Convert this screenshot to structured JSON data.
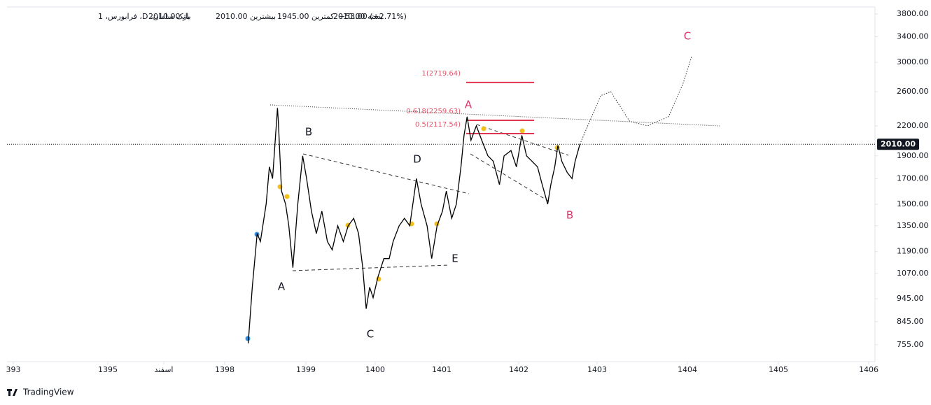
{
  "header": {
    "symbol": "بانک سامان، D، فرابورس، 1",
    "open": "باز 2010.00",
    "high": "بیشترین 2010.00",
    "low": "کمترین 1945.00",
    "close": "بسته 2010.00",
    "change": "+53.00 (+2.71%)"
  },
  "footer": "TradingView",
  "chart_data": {
    "type": "line",
    "log_scale": true,
    "color": "#000000",
    "x": [
      1398.29,
      1398.34,
      1398.4,
      1398.44,
      1398.51,
      1398.55,
      1398.59,
      1398.65,
      1398.66,
      1398.7,
      1398.75,
      1398.79,
      1398.84,
      1398.9,
      1398.96,
      1399.01,
      1399.08,
      1399.15,
      1399.23,
      1399.31,
      1399.38,
      1399.46,
      1399.54,
      1399.61,
      1399.69,
      1399.76,
      1399.82,
      1399.87,
      1399.92,
      1399.97,
      1400.04,
      1400.13,
      1400.21,
      1400.27,
      1400.36,
      1400.44,
      1400.52,
      1400.62,
      1400.69,
      1400.78,
      1400.85,
      1400.93,
      1401.01,
      1401.06,
      1401.13,
      1401.19,
      1401.25,
      1401.29,
      1401.33,
      1401.38,
      1401.45,
      1401.52,
      1401.6,
      1401.67,
      1401.75,
      1401.81,
      1401.9,
      1401.97,
      1402.04,
      1402.1,
      1402.17,
      1402.24,
      1402.3,
      1402.37,
      1402.41,
      1402.46,
      1402.5,
      1402.55,
      1402.62,
      1402.68,
      1402.72,
      1402.78
    ],
    "values": [
      760,
      1000,
      1300,
      1250,
      1500,
      1800,
      1700,
      2400,
      2250,
      1600,
      1500,
      1350,
      1100,
      1500,
      1900,
      1700,
      1450,
      1300,
      1450,
      1250,
      1200,
      1350,
      1250,
      1350,
      1400,
      1300,
      1100,
      900,
      1000,
      950,
      1050,
      1150,
      1150,
      1250,
      1350,
      1400,
      1350,
      1700,
      1500,
      1350,
      1150,
      1350,
      1450,
      1600,
      1400,
      1500,
      1800,
      2100,
      2300,
      2050,
      2200,
      2050,
      1900,
      1850,
      1650,
      1900,
      1950,
      1800,
      2100,
      1900,
      1850,
      1800,
      1650,
      1500,
      1650,
      1800,
      2000,
      1850,
      1750,
      1700,
      1850,
      2010
    ],
    "projection": {
      "x": [
        1402.78,
        1402.88,
        1403.04,
        1403.15,
        1403.36,
        1403.56,
        1403.79,
        1403.95,
        1404.05
      ],
      "values": [
        2010,
        2200,
        2550,
        2600,
        2250,
        2200,
        2300,
        2700,
        3100
      ]
    },
    "last_price": {
      "value": 2010,
      "label": "2010.00"
    },
    "fib_levels": [
      {
        "value": 2719.64,
        "label": "1(2719.64)"
      },
      {
        "value": 2259.63,
        "label": "0.618(2259.63)"
      },
      {
        "value": 2117.54,
        "label": "0.5(2117.54)"
      }
    ],
    "wave_labels": [
      "A",
      "B",
      "C",
      "D",
      "E",
      "A",
      "B",
      "C"
    ],
    "ylim": [
      695,
      3932
    ],
    "yticks": [
      {
        "value": 755,
        "label": "755.00"
      },
      {
        "value": 845,
        "label": "845.00"
      },
      {
        "value": 945,
        "label": "945.00"
      },
      {
        "value": 1070,
        "label": "1070.00"
      },
      {
        "value": 1190,
        "label": "1190.00"
      },
      {
        "value": 1350,
        "label": "1350.00"
      },
      {
        "value": 1500,
        "label": "1500.00"
      },
      {
        "value": 1700,
        "label": "1700.00"
      },
      {
        "value": 1900,
        "label": "1900.00"
      },
      {
        "value": 2200,
        "label": "2200.00"
      },
      {
        "value": 2600,
        "label": "2600.00"
      },
      {
        "value": 3000,
        "label": "3000.00"
      },
      {
        "value": 3400,
        "label": "3400.00"
      },
      {
        "value": 3800,
        "label": "3800.00"
      }
    ],
    "xticks": [
      {
        "value": 1393,
        "label": "393"
      },
      1395,
      {
        "value": 1397.92,
        "label": "اسفند"
      },
      1398,
      1399,
      1400,
      1401,
      1402,
      1403,
      1404,
      1405,
      1406
    ]
  }
}
